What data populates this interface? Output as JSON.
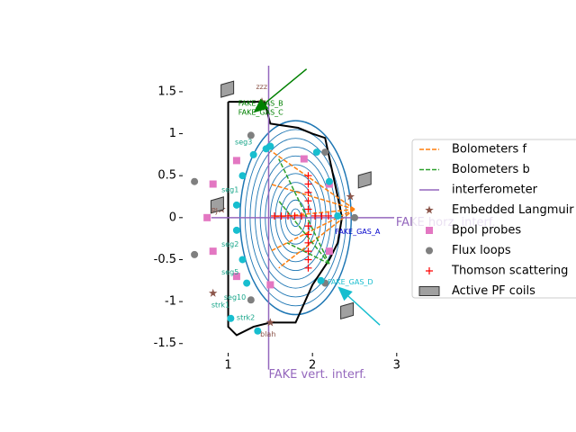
{
  "chart_data": {
    "type": "scatter",
    "xlim": [
      0.46,
      2.97
    ],
    "ylim": [
      -1.61,
      1.81
    ],
    "xticks": [
      1,
      2,
      3
    ],
    "yticks": [
      -1.5,
      -1.0,
      -0.5,
      0.0,
      0.5,
      1.0,
      1.5
    ],
    "wall": {
      "x": [
        1.0,
        1.43,
        1.5,
        1.83,
        2.0,
        2.15,
        2.3,
        2.35,
        2.3,
        2.2,
        2.0,
        1.8,
        1.5,
        1.3,
        1.1,
        1.0,
        1.0
      ],
      "y": [
        1.38,
        1.38,
        1.12,
        1.07,
        1.0,
        0.95,
        0.25,
        0.0,
        -0.3,
        -0.5,
        -0.8,
        -1.25,
        -1.25,
        -1.3,
        -1.4,
        -1.3,
        1.38
      ]
    },
    "flux_surfaces": {
      "color": "#1f77b4",
      "center": [
        1.8,
        0.0
      ],
      "elongation": 1.75,
      "rx": [
        0.06,
        0.12,
        0.18,
        0.24,
        0.3,
        0.36,
        0.42,
        0.48,
        0.54,
        0.6,
        0.66
      ]
    },
    "markers": {
      "color": "#17becf",
      "x": [
        1.1,
        1.1,
        1.17,
        1.17,
        1.3,
        1.22,
        1.45,
        1.5,
        2.2,
        1.03,
        1.35,
        2.3,
        2.05,
        2.1
      ],
      "y": [
        0.15,
        -0.15,
        0.5,
        -0.5,
        0.75,
        -0.78,
        0.82,
        0.85,
        0.43,
        -1.2,
        -1.35,
        0.02,
        0.78,
        -0.75
      ]
    },
    "series": [
      {
        "name": "Bolometers f",
        "color": "#ff7f0e",
        "kind": "dashed",
        "segments": [
          [
            2.5,
            0.1,
            1.5,
            0.8
          ],
          [
            2.5,
            0.1,
            1.5,
            0.4
          ],
          [
            2.5,
            0.1,
            1.5,
            0.0
          ],
          [
            2.5,
            0.1,
            1.5,
            -0.4
          ],
          [
            2.5,
            0.1,
            1.6,
            -0.6
          ]
        ]
      },
      {
        "name": "Bolometers b",
        "color": "#2ca02c",
        "kind": "dashed",
        "segments": [
          [
            2.2,
            -0.55,
            1.6,
            0.7
          ],
          [
            2.2,
            -0.55,
            1.6,
            0.2
          ],
          [
            2.2,
            -0.55,
            1.7,
            -0.3
          ]
        ]
      },
      {
        "name": "interferometer",
        "color": "#9467bd",
        "kind": "solid",
        "segments": [
          [
            1.48,
            1.81,
            1.48,
            -1.81
          ],
          [
            0.8,
            0.0,
            2.97,
            0.0
          ]
        ]
      },
      {
        "name": "Embedded Langmuir probes",
        "color": "#8c564b",
        "kind": "star",
        "x": [
          1.4,
          2.45,
          0.82,
          0.92,
          1.5
        ],
        "y": [
          1.38,
          0.25,
          -0.9,
          0.1,
          -1.25
        ]
      },
      {
        "name": "Bpol probes",
        "color": "#e377c2",
        "kind": "square",
        "x": [
          0.82,
          0.75,
          0.82,
          1.1,
          1.1,
          1.5,
          1.9,
          2.2,
          2.2
        ],
        "y": [
          0.4,
          0.0,
          -0.4,
          0.68,
          -0.7,
          -0.8,
          0.7,
          0.4,
          -0.4
        ]
      },
      {
        "name": "Flux loops",
        "color": "#7f7f7f",
        "kind": "circle",
        "x": [
          0.6,
          0.6,
          1.27,
          1.27,
          2.15,
          2.15,
          2.5
        ],
        "y": [
          0.43,
          -0.44,
          0.98,
          -0.98,
          0.78,
          -0.78,
          0.0
        ]
      },
      {
        "name": "Thomson scattering",
        "color": "#ff0000",
        "kind": "plus",
        "x": [
          1.95,
          1.95,
          1.95,
          1.95,
          1.95,
          1.95,
          1.95,
          1.95,
          1.95,
          1.95,
          1.95,
          1.55,
          1.63,
          1.71,
          1.79,
          1.87,
          2.03,
          2.11,
          2.19
        ],
        "y": [
          -0.6,
          -0.5,
          -0.4,
          -0.3,
          -0.2,
          -0.1,
          0.1,
          0.2,
          0.3,
          0.4,
          0.5,
          0.02,
          0.02,
          0.02,
          0.02,
          0.02,
          0.02,
          0.02,
          0.02
        ]
      },
      {
        "name": "Active PF coils",
        "color": "#a0a0a0",
        "kind": "coil",
        "x": [
          0.99,
          0.87,
          2.62,
          2.41
        ],
        "y": [
          1.53,
          0.15,
          0.45,
          -1.11
        ]
      }
    ],
    "arrows": [
      {
        "color": "#008000",
        "from": [
          1.93,
          1.77
        ],
        "to": [
          1.3,
          1.25
        ]
      },
      {
        "color": "#17becf",
        "from": [
          2.8,
          -1.28
        ],
        "to": [
          2.3,
          -0.82
        ]
      }
    ],
    "annotations": [
      {
        "text": "zzz",
        "x": 1.33,
        "y": 1.56,
        "color": "#8c564b"
      },
      {
        "text": "FAKE_GAS_B",
        "x": 1.12,
        "y": 1.36,
        "color": "#008000"
      },
      {
        "text": "FAKE_GAS_C",
        "x": 1.12,
        "y": 1.25,
        "color": "#008000"
      },
      {
        "text": "FAKE_GAS_A",
        "x": 2.27,
        "y": -0.17,
        "color": "#0000cc"
      },
      {
        "text": "FAKE_GAS_D",
        "x": 2.18,
        "y": -0.77,
        "color": "#17becf"
      },
      {
        "text": "FAKE horz. interf.",
        "x": 2.99,
        "y": -0.06,
        "color": "#9467bd",
        "big": true
      },
      {
        "text": "FAKE vert. interf.",
        "x": 1.48,
        "y": -1.87,
        "color": "#9467bd",
        "big": true
      },
      {
        "text": "blah",
        "x": 1.38,
        "y": -1.39,
        "color": "#8c564b"
      },
      {
        "text": "strk1",
        "x": 0.8,
        "y": -1.04,
        "color": "#17a589"
      },
      {
        "text": "strk2",
        "x": 1.1,
        "y": -1.19,
        "color": "#17a589"
      },
      {
        "text": "seg1",
        "x": 0.92,
        "y": 0.33,
        "color": "#17a589"
      },
      {
        "text": "seg3",
        "x": 1.08,
        "y": 0.9,
        "color": "#17a589"
      },
      {
        "text": "seg10",
        "x": 0.95,
        "y": -0.95,
        "color": "#17a589"
      },
      {
        "text": "seg5",
        "x": 0.92,
        "y": -0.65,
        "color": "#17a589"
      },
      {
        "text": "seg2",
        "x": 0.92,
        "y": -0.32,
        "color": "#17a589"
      },
      {
        "text": "PJ",
        "x": 0.8,
        "y": 0.08,
        "color": "#8c564b"
      }
    ],
    "legend": "center right"
  }
}
